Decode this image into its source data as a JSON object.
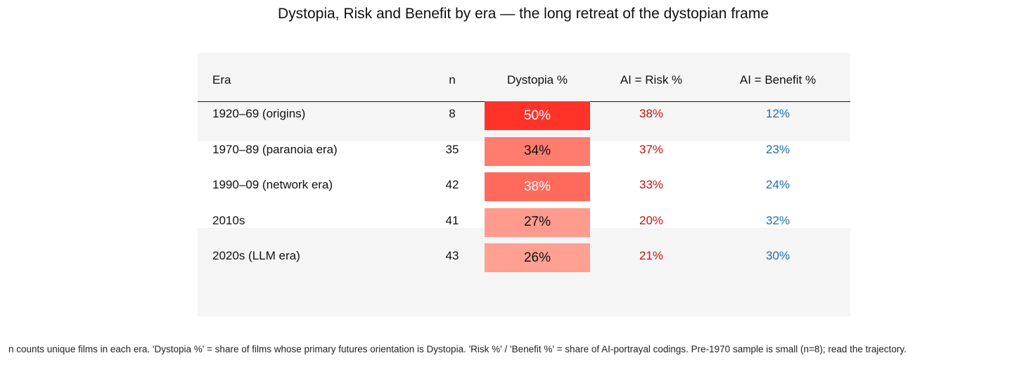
{
  "title": "Dystopia, Risk and Benefit by era — the long retreat of the dystopian frame",
  "footnote": "n counts unique films in each era.  'Dystopia %' = share of films whose primary futures orientation is Dystopia.  'Risk %' / 'Benefit %' = share of AI-portrayal codings.  Pre-1970 sample is small (n=8); read the trajectory.",
  "chart_data": {
    "type": "table",
    "columns": [
      "Era",
      "n",
      "Dystopia %",
      "AI = Risk %",
      "AI = Benefit %"
    ],
    "rows": [
      {
        "era": "1920–69  (origins)",
        "n": "8",
        "dystopia": "50%",
        "risk": "38%",
        "benefit": "12%",
        "dystopia_value": 50
      },
      {
        "era": "1970–89  (paranoia era)",
        "n": "35",
        "dystopia": "34%",
        "risk": "37%",
        "benefit": "23%",
        "dystopia_value": 34
      },
      {
        "era": "1990–09  (network era)",
        "n": "42",
        "dystopia": "38%",
        "risk": "33%",
        "benefit": "24%",
        "dystopia_value": 38
      },
      {
        "era": "2010s",
        "n": "41",
        "dystopia": "27%",
        "risk": "20%",
        "benefit": "32%",
        "dystopia_value": 27
      },
      {
        "era": "2020s  (LLM era)",
        "n": "43",
        "dystopia": "26%",
        "risk": "21%",
        "benefit": "30%",
        "dystopia_value": 26
      }
    ],
    "colors": {
      "dystopia_scale_high": "#ff3328",
      "dystopia_scale_low": "#ffa092",
      "risk_text": "#c21212",
      "benefit_text": "#1f6fa8"
    }
  }
}
